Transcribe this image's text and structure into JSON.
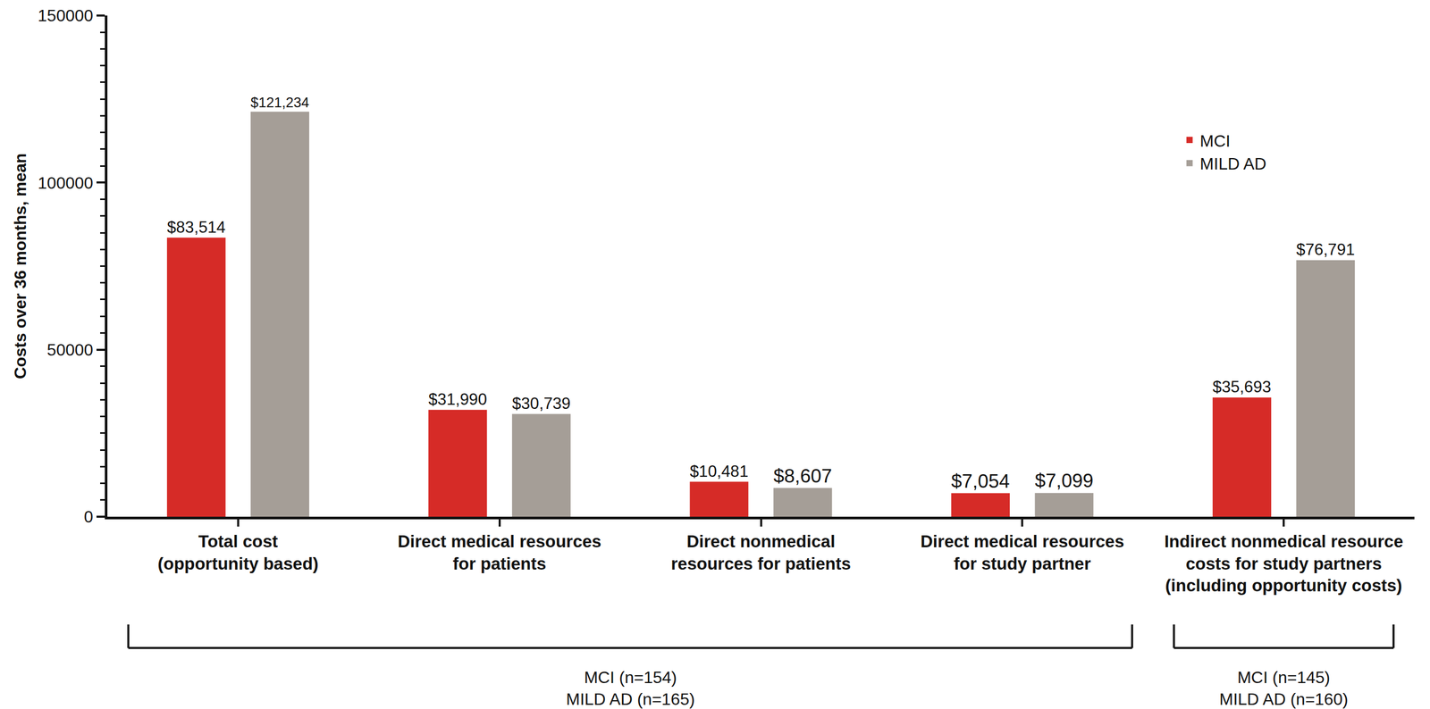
{
  "chart_data": {
    "type": "bar",
    "categories": [
      "Total cost\n(opportunity based)",
      "Direct medical resources\nfor patients",
      "Direct nonmedical\nresources for patients",
      "Direct medical resources\nfor study partner",
      "Indirect nonmedical resource\ncosts for study partners\n(including opportunity costs)"
    ],
    "series": [
      {
        "name": "MCI",
        "color": "#d62b27",
        "values": [
          83514,
          31990,
          10481,
          7054,
          35693
        ],
        "value_labels": [
          "$83,514",
          "$31,990",
          "$10,481",
          "$7,054",
          "$35,693"
        ]
      },
      {
        "name": "MILD AD",
        "color": "#a59e97",
        "values": [
          121234,
          30739,
          8607,
          7099,
          76791
        ],
        "value_labels": [
          "$121,234",
          "$30,739",
          "$8,607",
          "$7,099",
          "$76,791"
        ]
      }
    ],
    "y_label": "Costs over 36 months, mean",
    "ylim": [
      0,
      150000
    ],
    "yticks": [
      0,
      50000,
      100000,
      150000
    ],
    "grid": false,
    "legend": "upper right",
    "data_labels": true,
    "annotations": [
      {
        "text": "MCI (n=154)\nMILD AD (n=165)",
        "categories": [
          "Total cost\n(opportunity based)",
          "Direct medical resources\nfor study partner"
        ]
      },
      {
        "text": "MCI (n=145)\nMILD AD (n=160)",
        "categories": [
          "Indirect nonmedical resource\ncosts for study partners\n(including opportunity costs)",
          "Indirect nonmedical resource\ncosts for study partners\n(including opportunity costs)"
        ]
      }
    ]
  }
}
